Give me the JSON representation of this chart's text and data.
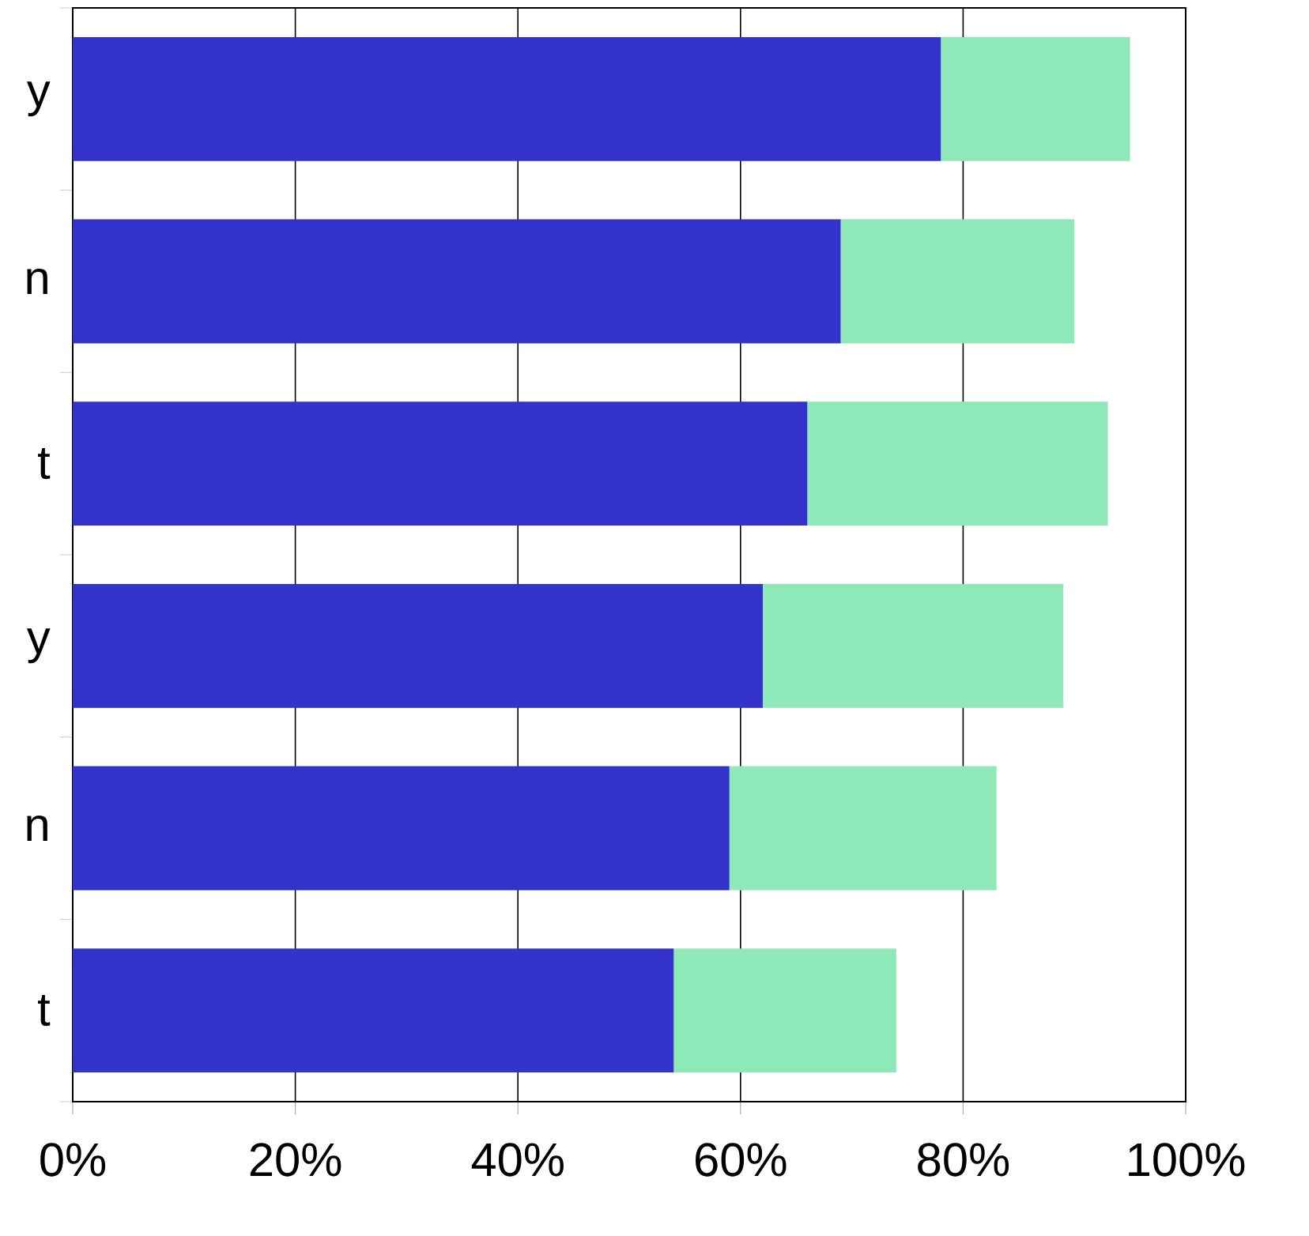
{
  "chart_data": {
    "type": "bar",
    "orientation": "horizontal",
    "stacked": true,
    "categories": [
      "y",
      "n",
      "t",
      "y",
      "n",
      "t"
    ],
    "series": [
      {
        "color": "#3333cc",
        "values": [
          78,
          69,
          66,
          62,
          59,
          54
        ]
      },
      {
        "color": "#8ee8b8",
        "values": [
          17,
          21,
          27,
          27,
          24,
          20
        ]
      }
    ],
    "xlim": [
      0,
      100
    ],
    "xticks": [
      {
        "value": 0,
        "label": "0%"
      },
      {
        "value": 20,
        "label": "20%"
      },
      {
        "value": 40,
        "label": "40%"
      },
      {
        "value": 60,
        "label": "60%"
      },
      {
        "value": 80,
        "label": "80%"
      },
      {
        "value": 100,
        "label": "100%"
      }
    ],
    "grid": "x"
  }
}
